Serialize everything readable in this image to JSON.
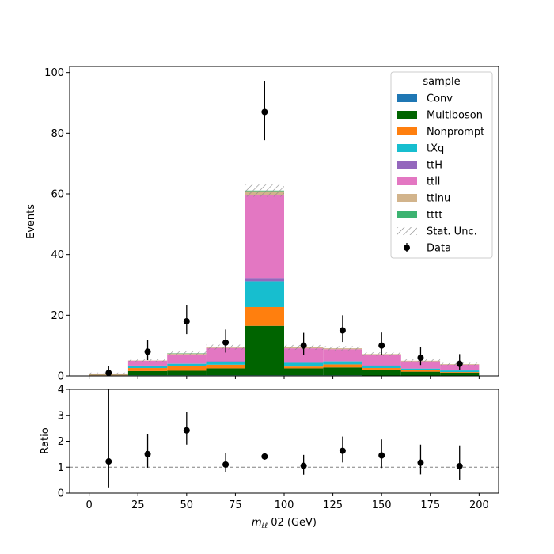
{
  "chart_data": [
    {
      "type": "bar",
      "stacked": true,
      "x_bin_edges": [
        0,
        20,
        40,
        60,
        80,
        100,
        120,
        140,
        160,
        180,
        200
      ],
      "xlim": [
        -10,
        210
      ],
      "ylim": [
        0,
        102
      ],
      "ylabel": "Events",
      "y_ticks": [
        "0",
        "20",
        "40",
        "60",
        "80",
        "100"
      ],
      "legend": {
        "title": "sample",
        "placement": "top-right"
      },
      "series": [
        {
          "name": "Conv",
          "color": "#1f77b4",
          "values": [
            0.2,
            0.2,
            0.2,
            0.2,
            0.2,
            0.2,
            0.2,
            0.1,
            0.1,
            0.1
          ]
        },
        {
          "name": "Multiboson",
          "color": "#006400",
          "values": [
            0.0,
            1.4,
            1.5,
            2.3,
            16.3,
            2.3,
            2.6,
            2.0,
            1.3,
            1.0
          ]
        },
        {
          "name": "Nonprompt",
          "color": "#ff7f0e",
          "values": [
            0.2,
            1.0,
            1.5,
            1.2,
            6.2,
            0.6,
            1.0,
            0.5,
            0.5,
            0.2
          ]
        },
        {
          "name": "tXq",
          "color": "#17becf",
          "values": [
            0.1,
            0.7,
            0.8,
            1.0,
            8.5,
            1.2,
            1.0,
            0.8,
            0.5,
            0.5
          ]
        },
        {
          "name": "ttH",
          "color": "#9467bd",
          "values": [
            0.0,
            0.1,
            0.1,
            0.2,
            1.1,
            0.1,
            0.1,
            0.1,
            0.1,
            0.1
          ]
        },
        {
          "name": "ttll",
          "color": "#e377c2",
          "values": [
            0.3,
            1.6,
            3.0,
            4.3,
            27.4,
            4.7,
            3.9,
            3.4,
            2.3,
            1.8
          ]
        },
        {
          "name": "ttlnu",
          "color": "#d2b48c",
          "values": [
            0.0,
            0.1,
            0.3,
            0.3,
            1.2,
            0.3,
            0.3,
            0.3,
            0.2,
            0.2
          ]
        },
        {
          "name": "tttt",
          "color": "#3cb371",
          "values": [
            0.0,
            0.0,
            0.1,
            0.0,
            0.2,
            0.0,
            0.0,
            0.0,
            0.0,
            0.0
          ]
        }
      ],
      "stat_unc": {
        "name": "Stat. Unc.",
        "values": [
          0.3,
          0.6,
          0.7,
          0.8,
          2.0,
          0.8,
          0.7,
          0.6,
          0.5,
          0.4
        ]
      },
      "data": {
        "name": "Data",
        "x": [
          10,
          30,
          50,
          70,
          90,
          110,
          130,
          150,
          170,
          190
        ],
        "y": [
          1,
          8,
          18,
          11,
          87,
          10,
          15,
          10,
          6,
          4
        ],
        "err_up": [
          2.3,
          3.9,
          5.3,
          4.3,
          10.3,
          4.2,
          5.0,
          4.3,
          3.5,
          3.2
        ],
        "err_down": [
          0.8,
          2.8,
          4.2,
          3.3,
          9.3,
          3.1,
          3.8,
          3.1,
          2.4,
          1.9
        ]
      }
    },
    {
      "type": "scatter",
      "xlim": [
        -10,
        210
      ],
      "ylim": [
        0,
        4
      ],
      "xlabel": "m_ll 02 (GeV)",
      "xlabel_main": "m",
      "xlabel_sub": "ℓℓ",
      "xlabel_rest": " 02 (GeV)",
      "ylabel": "Ratio",
      "x_ticks": [
        "0",
        "25",
        "50",
        "75",
        "100",
        "125",
        "150",
        "175",
        "200"
      ],
      "y_ticks": [
        "0",
        "1",
        "2",
        "3",
        "4"
      ],
      "reference_line": 1,
      "x": [
        10,
        30,
        50,
        70,
        90,
        110,
        130,
        150,
        170,
        190
      ],
      "y": [
        1.22,
        1.5,
        2.42,
        1.1,
        1.41,
        1.05,
        1.63,
        1.45,
        1.17,
        1.04
      ],
      "err_up": [
        2.9,
        0.78,
        0.71,
        0.45,
        0.14,
        0.42,
        0.55,
        0.62,
        0.7,
        0.8
      ],
      "err_down": [
        1.0,
        0.52,
        0.55,
        0.3,
        0.12,
        0.34,
        0.45,
        0.48,
        0.45,
        0.52
      ]
    }
  ]
}
